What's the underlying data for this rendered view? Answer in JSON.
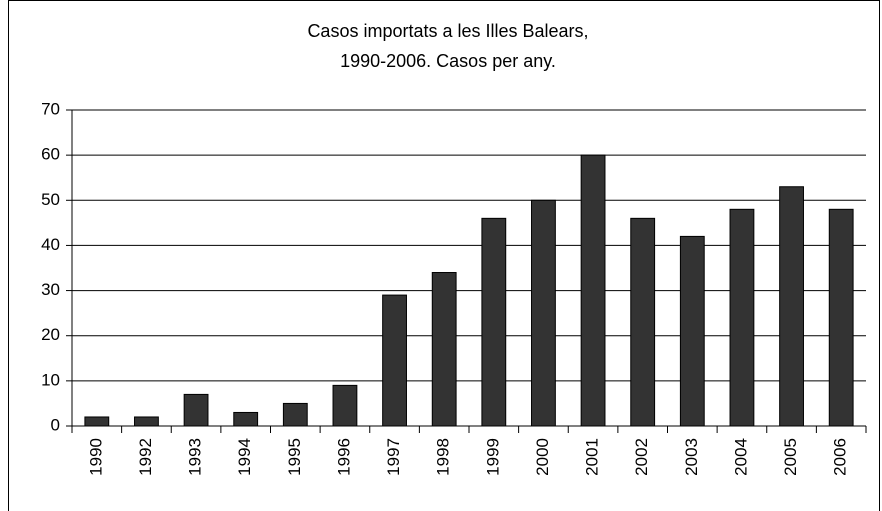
{
  "chart_data": {
    "type": "bar",
    "title": [
      "Casos importats a les Illes Balears,",
      "1990-2006. Casos per any."
    ],
    "categories": [
      "1990",
      "1992",
      "1993",
      "1994",
      "1995",
      "1996",
      "1997",
      "1998",
      "1999",
      "2000",
      "2001",
      "2002",
      "2003",
      "2004",
      "2005",
      "2006"
    ],
    "values": [
      2,
      2,
      7,
      3,
      5,
      9,
      29,
      34,
      46,
      50,
      60,
      46,
      42,
      48,
      53,
      48
    ],
    "color": "#333333",
    "ylim": [
      0,
      70
    ],
    "yticks": [
      0,
      10,
      20,
      30,
      40,
      50,
      60,
      70
    ],
    "grid": true
  }
}
